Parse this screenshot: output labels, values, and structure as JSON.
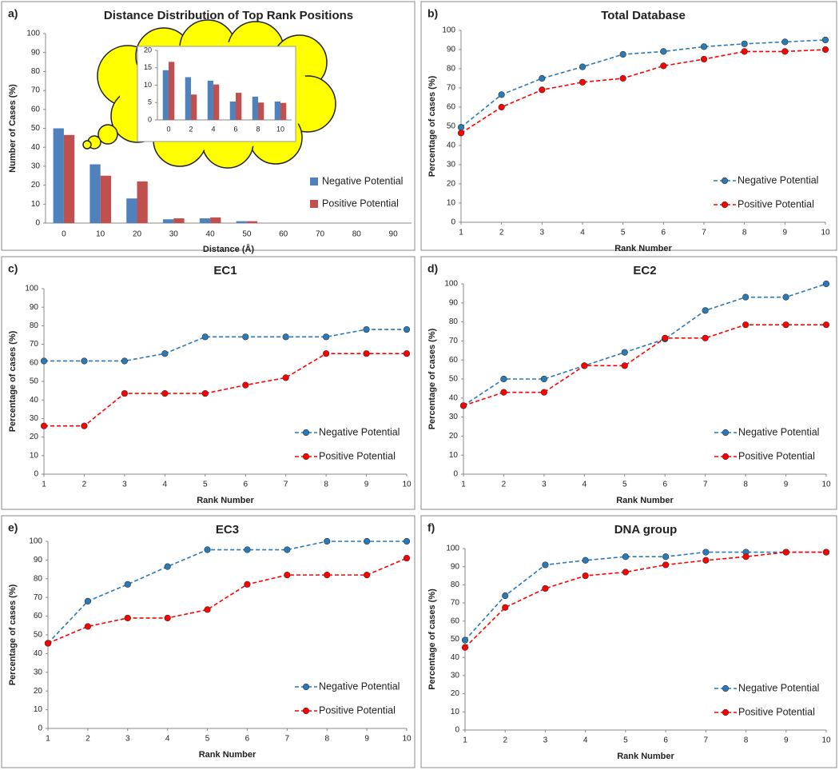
{
  "chart_data": [
    {
      "type": "bar",
      "label": "a)",
      "title": "Distance Distribution of Top Rank Positions",
      "x_label": "Distance (Å)",
      "y_label": "Number of Cases (%)",
      "categories": [
        "0",
        "10",
        "20",
        "30",
        "40",
        "50",
        "60",
        "70",
        "80",
        "90"
      ],
      "series": [
        {
          "name": "Negative Potential",
          "color": "#4f81bd",
          "values": [
            50,
            31,
            13,
            2,
            2.5,
            1,
            0,
            0,
            0,
            0
          ]
        },
        {
          "name": "Positive Potential",
          "color": "#c0504d",
          "values": [
            46.5,
            25,
            22,
            2.5,
            3,
            1,
            0,
            0,
            0,
            0
          ]
        }
      ],
      "ylim": [
        0,
        100
      ],
      "yticks": [
        0,
        10,
        20,
        30,
        40,
        50,
        60,
        70,
        80,
        90,
        100
      ],
      "legend": "right"
    },
    {
      "type": "line",
      "label": "b)",
      "title": "Total Database",
      "x_label": "Rank Number",
      "y_label": "Percentage of cases (%)",
      "x": [
        1,
        2,
        3,
        4,
        5,
        6,
        7,
        8,
        9,
        10
      ],
      "xlim": [
        1,
        10
      ],
      "xticks": [
        1,
        2,
        3,
        4,
        5,
        6,
        7,
        8,
        9,
        10
      ],
      "series": [
        {
          "name": "Negative Potential",
          "color": "#2a7ab8",
          "values": [
            49.5,
            66.5,
            75,
            81,
            87.5,
            89,
            91.5,
            93,
            94,
            95
          ]
        },
        {
          "name": "Positive Potential",
          "color": "#ff0000",
          "values": [
            46.5,
            60,
            69,
            73,
            75,
            81.5,
            85,
            89,
            89,
            90
          ]
        }
      ],
      "ylim": [
        0,
        100
      ],
      "yticks": [
        0,
        10,
        20,
        30,
        40,
        50,
        60,
        70,
        80,
        90,
        100
      ],
      "legend": "lower right"
    },
    {
      "type": "line",
      "label": "c)",
      "title": "EC1",
      "x_label": "Rank Number",
      "y_label": "Percentage of cases (%)",
      "x": [
        1,
        2,
        3,
        4,
        5,
        6,
        7,
        8,
        9,
        10
      ],
      "xlim": [
        1,
        10
      ],
      "xticks": [
        1,
        2,
        3,
        4,
        5,
        6,
        7,
        8,
        9,
        10
      ],
      "series": [
        {
          "name": "Negative Potential",
          "color": "#2a7ab8",
          "values": [
            61,
            61,
            61,
            65,
            74,
            74,
            74,
            74,
            78,
            78
          ]
        },
        {
          "name": "Positive Potential",
          "color": "#ff0000",
          "values": [
            26,
            26,
            43.5,
            43.5,
            43.5,
            48,
            52,
            65,
            65,
            65
          ]
        }
      ],
      "ylim": [
        0,
        100
      ],
      "yticks": [
        0,
        10,
        20,
        30,
        40,
        50,
        60,
        70,
        80,
        90,
        100
      ],
      "legend": "lower right"
    },
    {
      "type": "line",
      "label": "d)",
      "title": "EC2",
      "x_label": "Rank Number",
      "y_label": "Percentage of cases (%)",
      "x": [
        1,
        2,
        3,
        4,
        5,
        6,
        7,
        8,
        9,
        10
      ],
      "xlim": [
        1,
        10
      ],
      "xticks": [
        1,
        2,
        3,
        4,
        5,
        6,
        7,
        8,
        9,
        10
      ],
      "series": [
        {
          "name": "Negative Potential",
          "color": "#2a7ab8",
          "values": [
            36,
            50,
            50,
            57,
            64,
            71,
            86,
            93,
            93,
            100
          ]
        },
        {
          "name": "Positive Potential",
          "color": "#ff0000",
          "values": [
            36,
            43,
            43,
            57,
            57,
            71.5,
            71.5,
            78.5,
            78.5,
            78.5
          ]
        }
      ],
      "ylim": [
        0,
        100
      ],
      "yticks": [
        0,
        10,
        20,
        30,
        40,
        50,
        60,
        70,
        80,
        90,
        100
      ],
      "legend": "lower right"
    },
    {
      "type": "line",
      "label": "e)",
      "title": "EC3",
      "x_label": "Rank Number",
      "y_label": "Percentage of cases (%)",
      "x": [
        1,
        2,
        3,
        4,
        5,
        6,
        7,
        8,
        9,
        10
      ],
      "xlim": [
        1,
        10
      ],
      "xticks": [
        1,
        2,
        3,
        4,
        5,
        6,
        7,
        8,
        9,
        10
      ],
      "series": [
        {
          "name": "Negative Potential",
          "color": "#2a7ab8",
          "values": [
            45.5,
            68,
            77,
            86.5,
            95.5,
            95.5,
            95.5,
            100,
            100,
            100
          ]
        },
        {
          "name": "Positive Potential",
          "color": "#ff0000",
          "values": [
            45.5,
            54.5,
            59,
            59,
            63.5,
            77,
            82,
            82,
            82,
            91
          ]
        }
      ],
      "ylim": [
        0,
        100
      ],
      "yticks": [
        0,
        10,
        20,
        30,
        40,
        50,
        60,
        70,
        80,
        90,
        100
      ],
      "legend": "lower right"
    },
    {
      "type": "line",
      "label": "f)",
      "title": "DNA group",
      "x_label": "Rank Number",
      "y_label": "Percentage of cases (%)",
      "x": [
        1,
        2,
        3,
        4,
        5,
        6,
        7,
        8,
        9,
        10
      ],
      "xlim": [
        1,
        10
      ],
      "xticks": [
        1,
        2,
        3,
        4,
        5,
        6,
        7,
        8,
        9,
        10
      ],
      "series": [
        {
          "name": "Negative Potential",
          "color": "#2a7ab8",
          "values": [
            49.5,
            74,
            91,
            93.5,
            95.5,
            95.5,
            98,
            98,
            98,
            98
          ]
        },
        {
          "name": "Positive Potential",
          "color": "#ff0000",
          "values": [
            45.5,
            67.5,
            78,
            85,
            87,
            91,
            93.5,
            95.5,
            98,
            98
          ]
        }
      ],
      "ylim": [
        0,
        100
      ],
      "yticks": [
        0,
        10,
        20,
        30,
        40,
        50,
        60,
        70,
        80,
        90,
        100
      ],
      "legend": "lower right"
    },
    {
      "type": "bar",
      "categories": [
        "0",
        "2",
        "4",
        "6",
        "8",
        "10"
      ],
      "series": [
        {
          "color": "#4f81bd",
          "values": [
            14.3,
            12.3,
            11.3,
            5.3,
            6.7,
            5.3
          ]
        },
        {
          "color": "#c0504d",
          "values": [
            16.7,
            7.3,
            10.2,
            7.8,
            5,
            4.9
          ]
        }
      ],
      "ylim": [
        0,
        20
      ],
      "yticks": [
        0,
        5,
        10,
        15,
        20
      ]
    }
  ]
}
